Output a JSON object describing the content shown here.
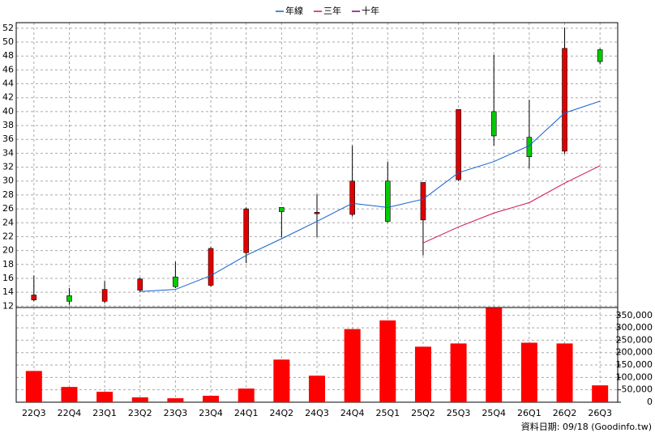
{
  "chart_data": {
    "type": "candlestick",
    "categories": [
      "22Q3",
      "22Q4",
      "23Q1",
      "23Q2",
      "23Q3",
      "23Q4",
      "24Q1",
      "24Q2",
      "24Q3",
      "24Q4",
      "25Q1",
      "25Q2",
      "25Q3",
      "25Q4",
      "26Q1",
      "26Q2",
      "26Q3"
    ],
    "open": [
      12.9,
      13.5,
      12.7,
      14.3,
      16.2,
      15.0,
      19.7,
      26.2,
      25.3,
      25.2,
      30.0,
      24.4,
      30.2,
      40.0,
      36.3,
      34.3,
      48.9
    ],
    "high": [
      16.4,
      14.6,
      15.6,
      16.1,
      18.4,
      20.5,
      26.2,
      26.2,
      28.1,
      35.1,
      32.8,
      29.8,
      40.3,
      48.2,
      41.7,
      52.1,
      49.1
    ],
    "low": [
      12.7,
      12.2,
      12.4,
      14.0,
      14.6,
      14.8,
      18.2,
      21.9,
      21.9,
      24.9,
      24.0,
      19.3,
      30.0,
      35.1,
      31.8,
      33.9,
      46.8
    ],
    "close": [
      13.6,
      12.7,
      14.4,
      15.9,
      14.8,
      20.3,
      26.0,
      25.6,
      25.5,
      30.0,
      24.2,
      29.8,
      40.3,
      36.5,
      33.5,
      49.1,
      47.2
    ],
    "up_color": "#e00000",
    "down_color": "#00cc00",
    "series": [
      {
        "name": "年線",
        "color": "#1060d0",
        "values": [
          null,
          null,
          null,
          14.1,
          14.4,
          16.4,
          19.3,
          21.7,
          24.2,
          26.8,
          26.2,
          27.4,
          31.2,
          32.8,
          35.1,
          39.8,
          41.5
        ]
      },
      {
        "name": "三年",
        "color": "#d0105a",
        "values": [
          null,
          null,
          null,
          null,
          null,
          null,
          null,
          null,
          null,
          null,
          null,
          21.1,
          23.4,
          25.4,
          26.9,
          29.7,
          32.2
        ]
      },
      {
        "name": "十年",
        "color": "#800080",
        "values": [
          null,
          null,
          null,
          null,
          null,
          null,
          null,
          null,
          null,
          null,
          null,
          null,
          null,
          null,
          null,
          null,
          null
        ]
      }
    ],
    "volume": {
      "color": "#ff0000",
      "values": [
        126000,
        61600,
        42000,
        19400,
        16000,
        26000,
        55000,
        172000,
        107000,
        295000,
        330000,
        224000,
        237000,
        380000,
        240000,
        237000,
        68000
      ]
    },
    "ylim": [
      11.8,
      52.8
    ],
    "yticks": [
      12,
      14,
      16,
      18,
      20,
      22,
      24,
      26,
      28,
      30,
      32,
      34,
      36,
      38,
      40,
      42,
      44,
      46,
      48,
      50,
      52
    ],
    "y2lim": [
      0,
      382000
    ],
    "y2ticks": [
      0,
      {
        "value": 50000,
        "label": "50,000"
      },
      {
        "value": 100000,
        "label": "100,000"
      },
      {
        "value": 150000,
        "label": "150,000"
      },
      {
        "value": 200000,
        "label": "200,000"
      },
      {
        "value": 250000,
        "label": "250,000"
      },
      {
        "value": 300000,
        "label": "300,000"
      },
      {
        "value": 350000,
        "label": "350,000"
      }
    ],
    "grid": true,
    "legend": "top",
    "source": "資料日期: 09/18 (Goodinfo.tw)"
  }
}
